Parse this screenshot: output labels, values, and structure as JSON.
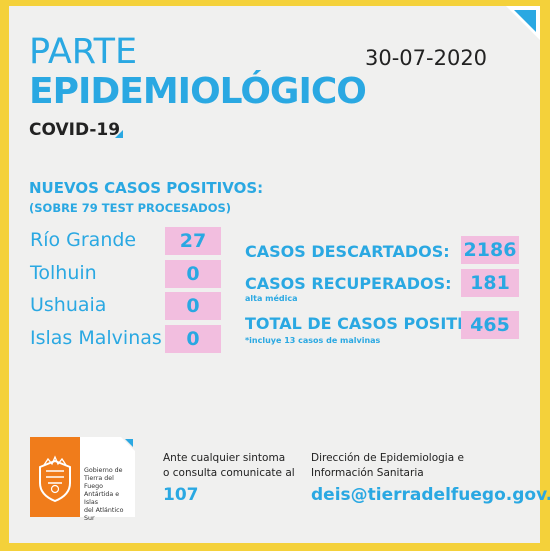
{
  "header": {
    "title_line1": "PARTE",
    "title_line2": "EPIDEMIOLÓGICO",
    "date": "30-07-2020",
    "subtitle": "COVID-19"
  },
  "new_cases": {
    "heading": "NUEVOS CASOS POSITIVOS:",
    "subheading": "(SOBRE 79 TEST PROCESADOS)",
    "locations": [
      {
        "name": "Río Grande",
        "value": "27"
      },
      {
        "name": "Tolhuin",
        "value": "0"
      },
      {
        "name": "Ushuaia",
        "value": "0"
      },
      {
        "name": "Islas Malvinas",
        "value": "0"
      }
    ]
  },
  "stats": {
    "discarded": {
      "label": "CASOS DESCARTADOS:",
      "value": "2186"
    },
    "recovered": {
      "label": "CASOS RECUPERADOS:",
      "note": "alta médica",
      "value": "181"
    },
    "total": {
      "label": "TOTAL DE CASOS POSITIVOS",
      "note": "*incluye 13 casos de malvinas",
      "value": "465"
    }
  },
  "footer": {
    "logo_lines": [
      "Gobierno de",
      "Tierra del Fuego",
      "Antártida e Islas",
      "del Atlántico Sur"
    ],
    "contact_line1": "Ante cualquier sintoma",
    "contact_line2": "o consulta comunicate al",
    "phone": "107",
    "office_line1": "Dirección de Epidemiologia e",
    "office_line2": "Información Sanitaria",
    "email": "deis@tierradelfuego.gov.ar"
  },
  "colors": {
    "accent": "#2aa8e2",
    "border": "#f4d13a",
    "highlight": "#f2bedf",
    "logo_orange": "#f07c1b"
  }
}
